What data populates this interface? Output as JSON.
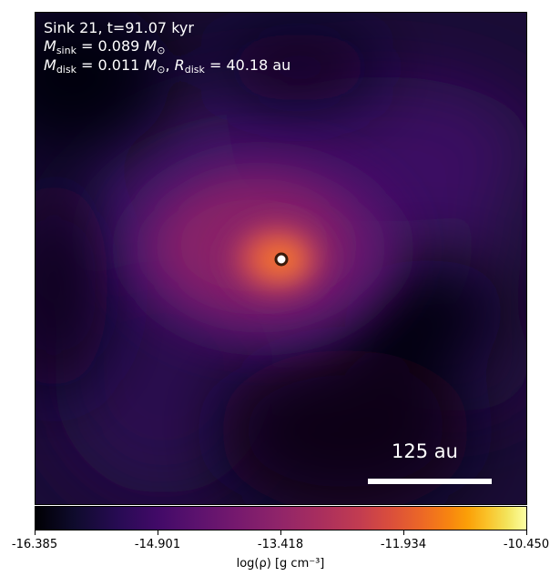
{
  "annotations": {
    "line1": "Sink 21, t=91.07 kyr",
    "msink_symbol": "M",
    "msink_sub": "sink",
    "msink_value": " = 0.089 ",
    "msink_unit": "M",
    "msink_unit_sub": "⊙",
    "mdisk_symbol": "M",
    "mdisk_sub": "disk",
    "mdisk_value": " = 0.011 ",
    "mdisk_unit": "M",
    "mdisk_unit_sub": "⊙",
    "rdisk_sep": ", ",
    "rdisk_symbol": "R",
    "rdisk_sub": "disk",
    "rdisk_value": " = 40.18 au"
  },
  "scale_bar": {
    "label": "125 au"
  },
  "colorbar": {
    "colormap": "inferno",
    "ticks": [
      "-16.385",
      "-14.901",
      "-13.418",
      "-11.934",
      "-10.450"
    ],
    "label": "log(ρ) [g cm⁻³]"
  },
  "colors": {
    "background_dark": "#000004",
    "sink_marker_fill": "#ffffff",
    "sink_marker_ring": "#3a1a0a"
  }
}
